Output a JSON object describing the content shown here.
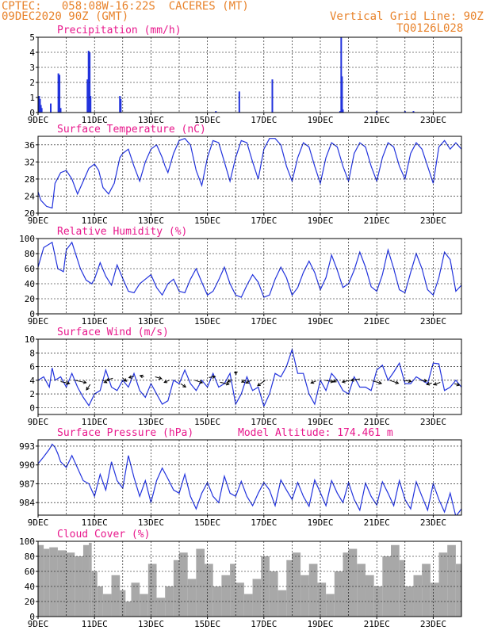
{
  "header": {
    "line1": "CPTEC:   058:08W-16:22S  CACERES (MT)",
    "line2": "09DEC2020 90Z (GMT)",
    "right1": "Vertical Grid Line: 90Z",
    "right2": "TQ0126L028"
  },
  "colors": {
    "header": "#e8822a",
    "title": "#e8188c",
    "line": "#2233dd",
    "cloud": "#a8a8a8",
    "axis": "#000000"
  },
  "x_axis": {
    "unit": "day index from 9DEC",
    "range": [
      0,
      15
    ],
    "ticks": [
      0,
      2,
      4,
      6,
      8,
      10,
      12,
      14
    ],
    "tick_labels": [
      "9DEC",
      "11DEC",
      "13DEC",
      "15DEC",
      "17DEC",
      "19DEC",
      "21DEC",
      "23DEC"
    ],
    "grid": "vertical dashed, daily"
  },
  "chart_data": [
    {
      "type": "bar",
      "title": "Precipitation (mm/h)",
      "ylim": [
        0,
        5
      ],
      "yticks": [
        0,
        1,
        2,
        3,
        4,
        5
      ],
      "grid": true,
      "bars": [
        [
          0.04,
          1.1
        ],
        [
          0.07,
          0.9
        ],
        [
          0.1,
          0.5
        ],
        [
          0.13,
          0.3
        ],
        [
          0.45,
          0.6
        ],
        [
          0.72,
          2.6
        ],
        [
          0.76,
          2.5
        ],
        [
          0.8,
          0.3
        ],
        [
          1.75,
          2.2
        ],
        [
          1.79,
          4.1
        ],
        [
          1.83,
          4.0
        ],
        [
          1.86,
          1.1
        ],
        [
          2.9,
          1.1
        ],
        [
          2.93,
          0.9
        ],
        [
          6.3,
          0.1
        ],
        [
          7.13,
          1.4
        ],
        [
          8.3,
          2.2
        ],
        [
          10.7,
          0.1
        ],
        [
          10.74,
          5.0
        ],
        [
          10.77,
          2.4
        ],
        [
          10.8,
          0.2
        ],
        [
          12.0,
          0.1
        ],
        [
          13.0,
          0.1
        ],
        [
          13.3,
          0.1
        ]
      ]
    },
    {
      "type": "line",
      "title": "Surface Temperature (nC)",
      "ylim": [
        20,
        38
      ],
      "yticks": [
        20,
        24,
        28,
        32,
        36
      ],
      "grid": true,
      "series": [
        {
          "x": [
            0.0,
            0.1,
            0.3,
            0.5,
            0.6,
            0.8,
            1.0,
            1.2,
            1.4,
            1.6,
            1.8,
            2.0,
            2.15,
            2.3,
            2.5,
            2.7,
            2.9,
            3.0,
            3.2,
            3.4,
            3.6,
            3.8,
            4.0,
            4.2,
            4.4,
            4.5,
            4.6,
            4.8,
            5.0,
            5.2,
            5.4,
            5.6,
            5.8,
            6.0,
            6.2,
            6.4,
            6.6,
            6.8,
            7.0,
            7.2,
            7.4,
            7.6,
            7.8,
            8.0,
            8.2,
            8.4,
            8.6,
            8.8,
            9.0,
            9.2,
            9.4,
            9.6,
            9.8,
            10.0,
            10.2,
            10.4,
            10.6,
            10.8,
            11.0,
            11.2,
            11.4,
            11.6,
            11.8,
            12.0,
            12.2,
            12.4,
            12.6,
            12.8,
            13.0,
            13.2,
            13.4,
            13.6,
            13.8,
            14.0,
            14.2,
            14.4,
            14.6,
            14.8,
            15.0
          ],
          "y": [
            25,
            23,
            21.6,
            21.2,
            27,
            29.5,
            30,
            28,
            24.5,
            27.5,
            30.5,
            31.5,
            30,
            26,
            24.5,
            27,
            33,
            34,
            35,
            31,
            27.5,
            32,
            35,
            36,
            33,
            31,
            29.5,
            34,
            37,
            37.5,
            36,
            30,
            26.5,
            33,
            37,
            36.5,
            32,
            27.5,
            33,
            37,
            36.5,
            32,
            28,
            35,
            37.5,
            37.5,
            36,
            31,
            27.5,
            33,
            36.5,
            35.5,
            31,
            27,
            33,
            36.5,
            35.5,
            31,
            27.5,
            34,
            36.5,
            35.5,
            31,
            27.5,
            33,
            36.5,
            35.5,
            31,
            28,
            34,
            36.5,
            35,
            31,
            27,
            35.5,
            37,
            35,
            36.5,
            35
          ]
        }
      ]
    },
    {
      "type": "line",
      "title": "Relative Humidity (%)",
      "ylim": [
        0,
        100
      ],
      "yticks": [
        0,
        20,
        40,
        60,
        80,
        100
      ],
      "grid": true,
      "series": [
        {
          "x": [
            0.0,
            0.2,
            0.5,
            0.7,
            0.9,
            1.0,
            1.2,
            1.5,
            1.7,
            1.9,
            2.0,
            2.2,
            2.4,
            2.6,
            2.8,
            3.0,
            3.2,
            3.4,
            3.6,
            3.8,
            4.0,
            4.2,
            4.4,
            4.6,
            4.8,
            5.0,
            5.2,
            5.4,
            5.6,
            5.8,
            6.0,
            6.2,
            6.4,
            6.6,
            6.8,
            7.0,
            7.2,
            7.4,
            7.6,
            7.8,
            8.0,
            8.2,
            8.4,
            8.6,
            8.8,
            9.0,
            9.2,
            9.4,
            9.6,
            9.8,
            10.0,
            10.2,
            10.4,
            10.6,
            10.8,
            11.0,
            11.2,
            11.4,
            11.6,
            11.8,
            12.0,
            12.2,
            12.4,
            12.6,
            12.8,
            13.0,
            13.2,
            13.4,
            13.6,
            13.8,
            14.0,
            14.2,
            14.4,
            14.6,
            14.8,
            15.0
          ],
          "y": [
            62,
            88,
            95,
            60,
            56,
            85,
            95,
            60,
            45,
            40,
            46,
            68,
            50,
            38,
            65,
            47,
            30,
            28,
            40,
            46,
            52,
            35,
            25,
            40,
            46,
            30,
            28,
            46,
            60,
            42,
            25,
            30,
            45,
            62,
            40,
            25,
            22,
            38,
            52,
            42,
            22,
            25,
            46,
            62,
            48,
            25,
            35,
            55,
            70,
            55,
            32,
            48,
            78,
            58,
            35,
            40,
            58,
            82,
            62,
            36,
            30,
            52,
            85,
            60,
            32,
            28,
            55,
            80,
            60,
            32,
            25,
            48,
            82,
            72,
            30,
            38
          ]
        }
      ]
    },
    {
      "type": "line",
      "title": "Surface Wind (m/s)",
      "ylim": [
        -1,
        10
      ],
      "yticks": [
        0,
        2,
        4,
        6,
        8,
        10
      ],
      "grid": true,
      "series": [
        {
          "x": [
            0.0,
            0.2,
            0.4,
            0.5,
            0.6,
            0.8,
            1.0,
            1.2,
            1.4,
            1.6,
            1.8,
            2.0,
            2.2,
            2.4,
            2.6,
            2.8,
            3.0,
            3.2,
            3.4,
            3.6,
            3.8,
            4.0,
            4.2,
            4.4,
            4.6,
            4.8,
            5.0,
            5.2,
            5.4,
            5.6,
            5.8,
            6.0,
            6.2,
            6.4,
            6.6,
            6.8,
            7.0,
            7.2,
            7.4,
            7.6,
            7.8,
            8.0,
            8.2,
            8.4,
            8.6,
            8.8,
            9.0,
            9.2,
            9.4,
            9.6,
            9.8,
            10.0,
            10.2,
            10.4,
            10.6,
            10.8,
            11.0,
            11.2,
            11.4,
            11.6,
            11.8,
            12.0,
            12.2,
            12.4,
            12.6,
            12.8,
            13.0,
            13.2,
            13.4,
            13.6,
            13.8,
            14.0,
            14.2,
            14.4,
            14.6,
            14.8,
            15.0
          ],
          "y": [
            4,
            4.5,
            3,
            5.8,
            4,
            4.5,
            3,
            5,
            3,
            1.5,
            0.3,
            2,
            2.5,
            5.5,
            3,
            2.5,
            4,
            3,
            5,
            2.5,
            1.5,
            3.5,
            2,
            0.5,
            1,
            4,
            3.5,
            5.5,
            3.5,
            2.5,
            4,
            3,
            5,
            3,
            3.5,
            5,
            0.5,
            2,
            4.5,
            2.5,
            3,
            0.2,
            2,
            5,
            4.5,
            6,
            8.5,
            5,
            5,
            2,
            0.5,
            4,
            2.5,
            5,
            4,
            2.5,
            2,
            4.5,
            3,
            3,
            2.5,
            5.5,
            6.2,
            4,
            5.2,
            6.5,
            3.5,
            3.5,
            4.5,
            4,
            3.5,
            6.5,
            6.4,
            2.5,
            3,
            4,
            3
          ]
        }
      ],
      "arrows": [
        [
          0.8,
          3.8,
          0.7,
          -0.6
        ],
        [
          1.3,
          4.0,
          0.9,
          -0.8
        ],
        [
          1.85,
          3.4,
          -0.3,
          -1.8
        ],
        [
          2.3,
          4.0,
          0.3,
          -0.8
        ],
        [
          2.65,
          4.3,
          -0.5,
          -0.7
        ],
        [
          3.0,
          4.3,
          0.3,
          -1.0
        ],
        [
          3.4,
          4.6,
          -0.4,
          -0.5
        ],
        [
          3.75,
          4.5,
          -0.3,
          0.4
        ],
        [
          4.15,
          4.5,
          0.5,
          -0.6
        ],
        [
          4.65,
          4.0,
          -0.4,
          -0.7
        ],
        [
          5.05,
          3.5,
          0.4,
          -1.1
        ],
        [
          5.55,
          4.0,
          0.6,
          -0.8
        ],
        [
          6.05,
          4.4,
          0.5,
          0.3
        ],
        [
          6.45,
          3.7,
          0.7,
          -0.6
        ],
        [
          6.85,
          4.1,
          -0.3,
          -0.8
        ],
        [
          7.05,
          5.0,
          -0.2,
          0.4
        ],
        [
          7.35,
          4.0,
          -0.3,
          -0.6
        ],
        [
          7.55,
          4.0,
          -0.4,
          -0.9
        ],
        [
          8.05,
          4.0,
          -0.6,
          -1.8
        ],
        [
          9.85,
          3.9,
          -0.4,
          -0.7
        ],
        [
          10.15,
          4.0,
          0.7,
          -0.5
        ],
        [
          10.6,
          4.1,
          -0.3,
          -0.8
        ],
        [
          11.05,
          4.0,
          -0.6,
          -0.6
        ],
        [
          11.4,
          4.2,
          -0.7,
          -0.5
        ],
        [
          11.85,
          3.9,
          0.7,
          -0.8
        ],
        [
          12.45,
          4.0,
          0.7,
          -1.0
        ],
        [
          12.95,
          4.0,
          0.6,
          -0.4
        ],
        [
          13.55,
          4.0,
          0.5,
          -0.2
        ],
        [
          13.95,
          3.6,
          -0.4,
          -0.5
        ],
        [
          14.25,
          3.7,
          -0.5,
          -0.8
        ],
        [
          14.75,
          3.5,
          0.4,
          -0.5
        ]
      ]
    },
    {
      "type": "line",
      "title": "Surface Pressure (hPa)",
      "annotation": "Model Altitude: 174.461  m",
      "ylim": [
        982,
        994
      ],
      "yticks": [
        984,
        987,
        990,
        993
      ],
      "grid": true,
      "series": [
        {
          "x": [
            0.0,
            0.2,
            0.4,
            0.5,
            0.6,
            0.7,
            0.8,
            1.0,
            1.2,
            1.4,
            1.6,
            1.8,
            2.0,
            2.2,
            2.4,
            2.6,
            2.8,
            3.0,
            3.2,
            3.4,
            3.6,
            3.8,
            4.0,
            4.2,
            4.4,
            4.6,
            4.8,
            5.0,
            5.2,
            5.4,
            5.6,
            5.8,
            6.0,
            6.2,
            6.4,
            6.6,
            6.8,
            7.0,
            7.2,
            7.4,
            7.6,
            7.8,
            8.0,
            8.2,
            8.4,
            8.6,
            8.8,
            9.0,
            9.2,
            9.4,
            9.6,
            9.8,
            10.0,
            10.2,
            10.4,
            10.6,
            10.8,
            11.0,
            11.2,
            11.4,
            11.6,
            11.8,
            12.0,
            12.2,
            12.4,
            12.6,
            12.8,
            13.0,
            13.2,
            13.4,
            13.6,
            13.8,
            14.0,
            14.2,
            14.4,
            14.6,
            14.8,
            15.0
          ],
          "y": [
            990.2,
            991.3,
            992.5,
            993.3,
            992.8,
            991.8,
            990.5,
            989.6,
            991.5,
            989.5,
            987.5,
            987,
            985,
            988.5,
            986,
            990.5,
            987.5,
            986.3,
            991.5,
            988,
            985,
            987.5,
            984,
            987.5,
            989.5,
            987.8,
            986,
            985.5,
            988.5,
            985,
            983,
            985.5,
            987.2,
            985,
            984,
            988.2,
            985.5,
            985,
            987.4,
            985,
            983.5,
            985.5,
            987.2,
            986,
            983.5,
            987.6,
            986,
            984.5,
            987.2,
            985,
            983.4,
            987.6,
            985.6,
            983.5,
            987.5,
            985.5,
            984,
            987.2,
            984.5,
            982.8,
            987.1,
            985,
            983.6,
            987.3,
            985.5,
            983.5,
            987.5,
            984.5,
            983,
            987.3,
            985,
            982.8,
            987,
            984.5,
            982.5,
            985.5,
            981.8,
            983
          ]
        }
      ]
    },
    {
      "type": "area",
      "title": "Cloud Cover (%)",
      "ylim": [
        0,
        100
      ],
      "yticks": [
        0,
        20,
        40,
        60,
        80,
        100
      ],
      "grid": true,
      "series": [
        {
          "x": [
            0.0,
            0.2,
            0.4,
            0.7,
            1.0,
            1.3,
            1.6,
            1.8,
            1.9,
            2.1,
            2.3,
            2.6,
            2.9,
            3.1,
            3.3,
            3.6,
            3.9,
            4.2,
            4.5,
            4.8,
            5.0,
            5.3,
            5.6,
            5.9,
            6.2,
            6.5,
            6.8,
            7.0,
            7.3,
            7.6,
            7.9,
            8.2,
            8.5,
            8.8,
            9.0,
            9.3,
            9.6,
            9.9,
            10.2,
            10.5,
            10.8,
            11.0,
            11.3,
            11.6,
            11.9,
            12.2,
            12.5,
            12.8,
            13.0,
            13.3,
            13.6,
            13.9,
            14.2,
            14.5,
            14.8,
            15.0
          ],
          "y": [
            95,
            90,
            92,
            88,
            85,
            80,
            95,
            98,
            60,
            40,
            30,
            55,
            35,
            20,
            45,
            30,
            70,
            25,
            40,
            75,
            85,
            50,
            90,
            70,
            40,
            55,
            70,
            45,
            30,
            50,
            80,
            60,
            35,
            75,
            85,
            55,
            70,
            45,
            30,
            60,
            85,
            90,
            70,
            55,
            40,
            80,
            95,
            75,
            40,
            55,
            70,
            45,
            85,
            95,
            70,
            90
          ]
        }
      ]
    }
  ]
}
